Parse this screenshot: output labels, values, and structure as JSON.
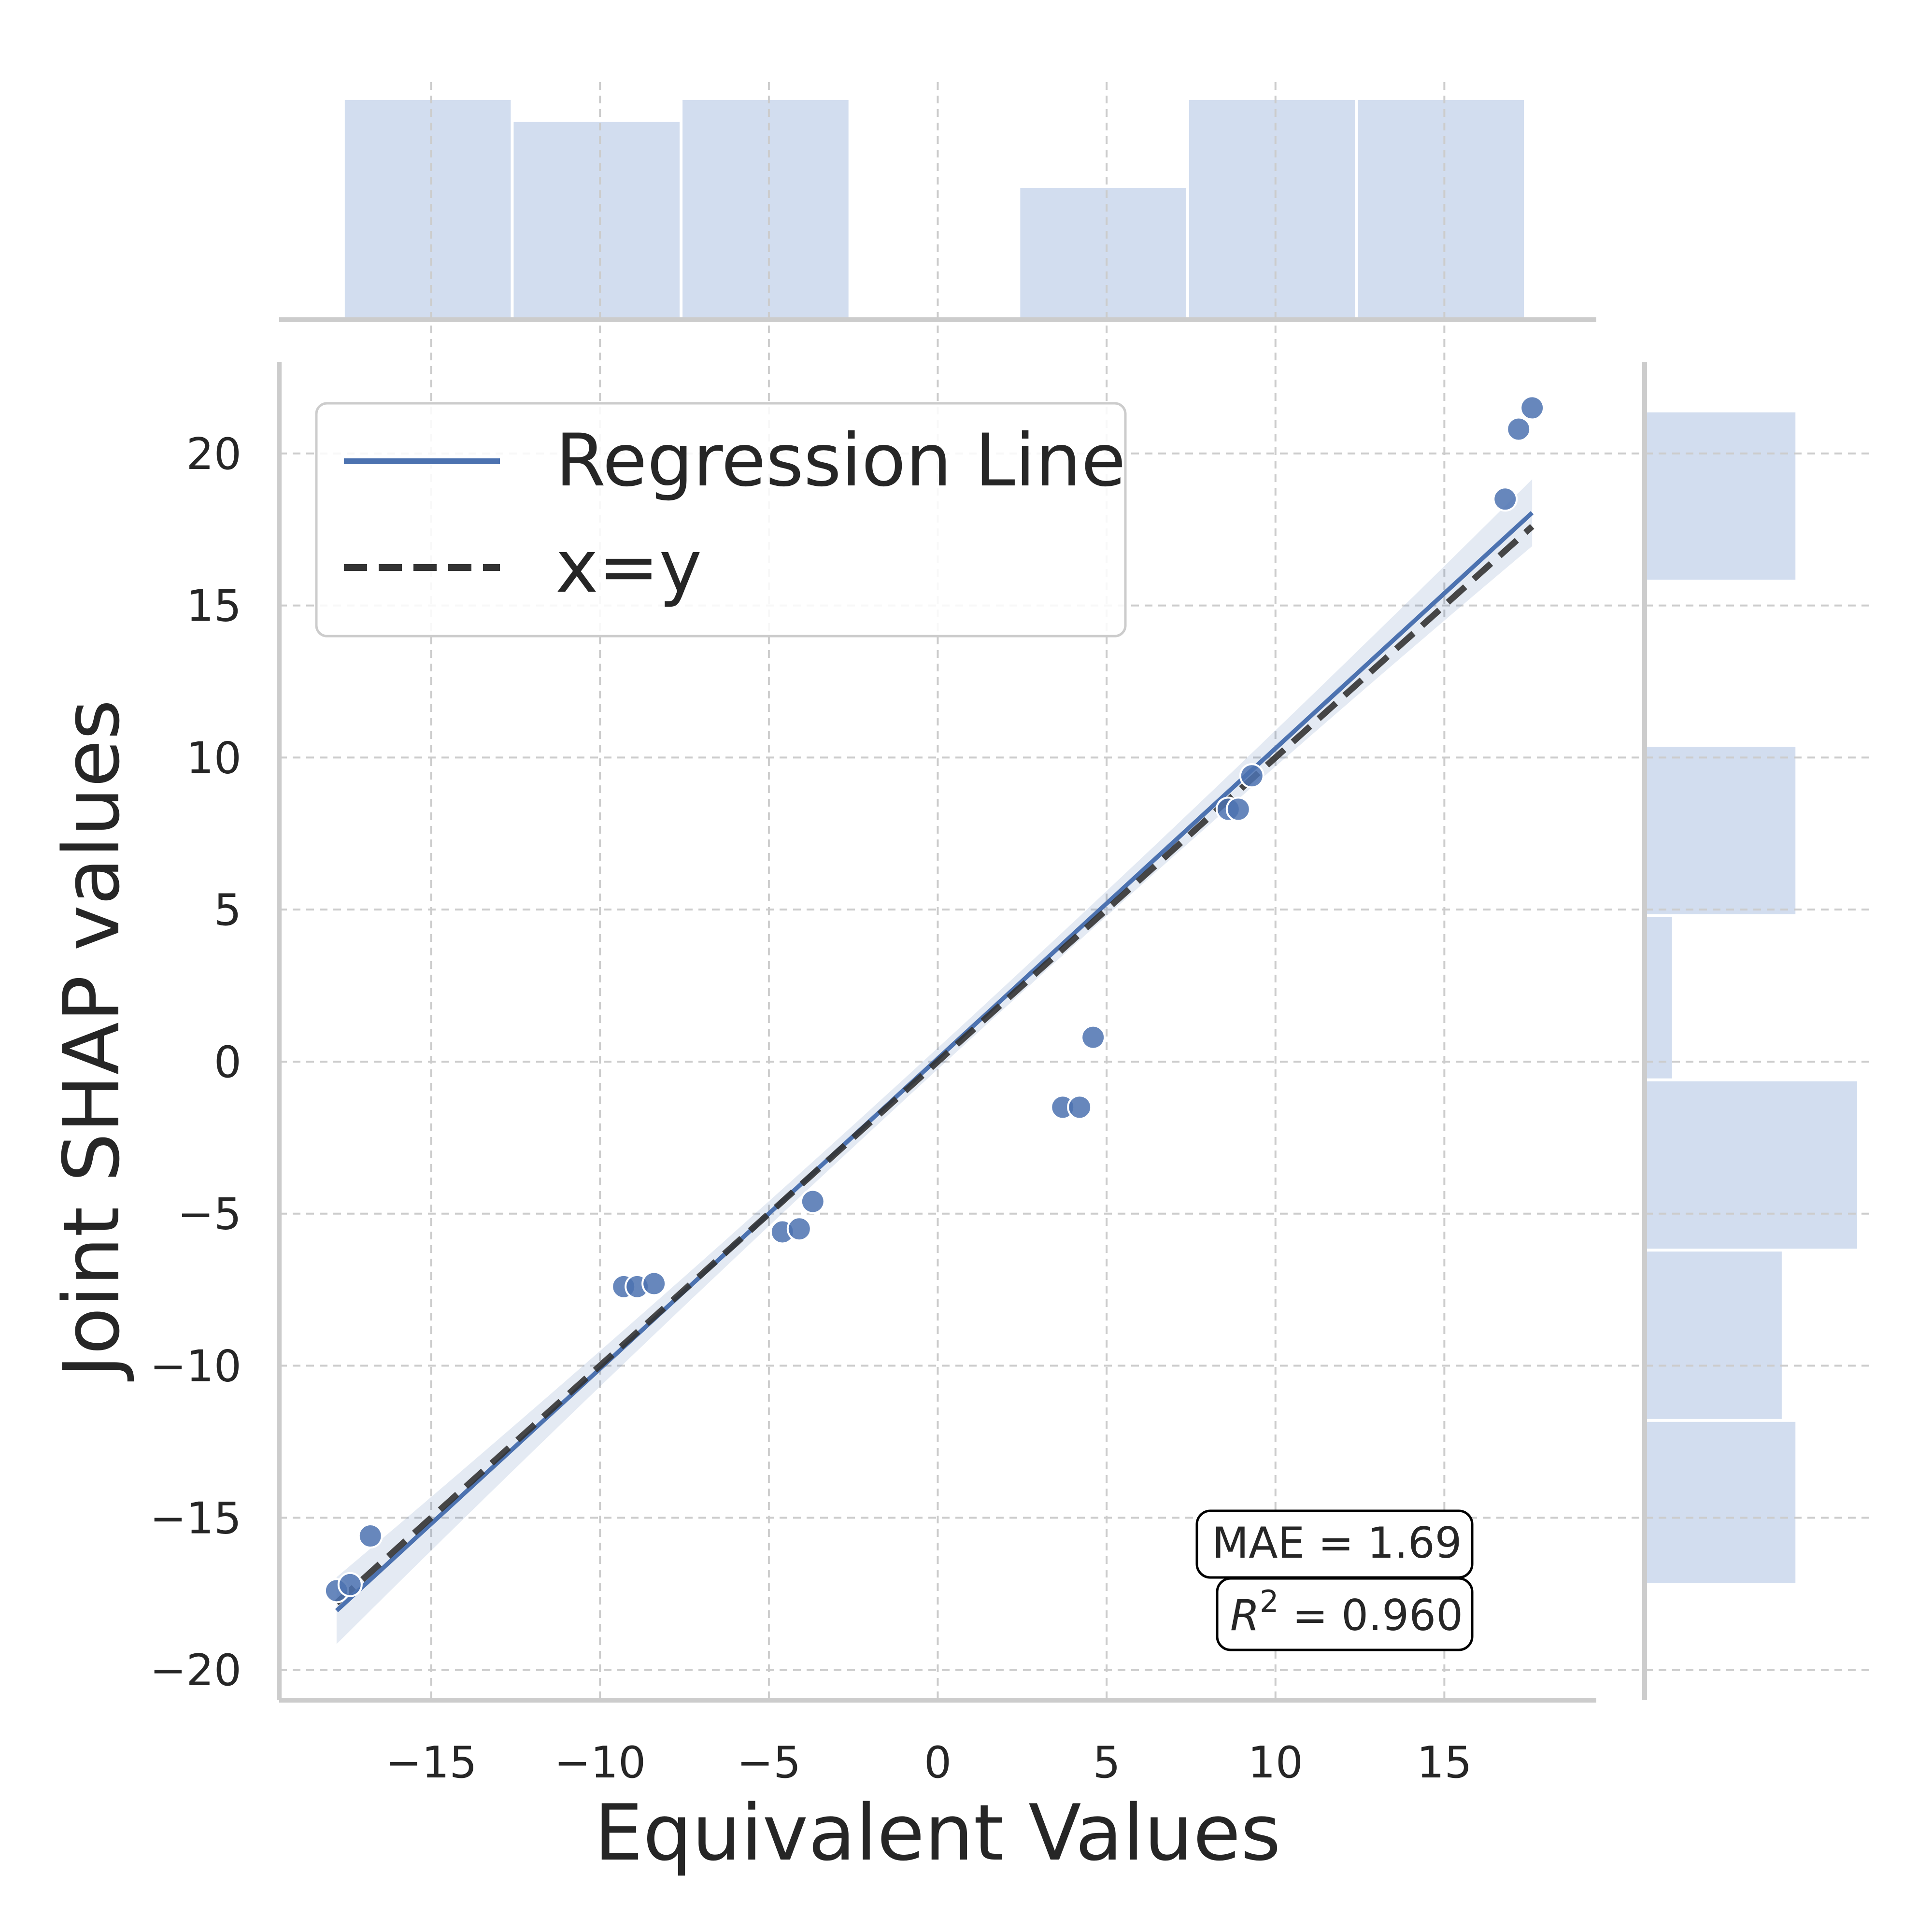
{
  "chart_data": {
    "type": "scatter",
    "xlabel": "Equivalent Values",
    "ylabel": "Joint SHAP values",
    "xlim": [
      -19.5,
      19.5
    ],
    "ylim": [
      -21,
      23
    ],
    "x_ticks": [
      -15,
      -10,
      -5,
      0,
      5,
      10,
      15
    ],
    "y_ticks": [
      -20,
      -15,
      -10,
      -5,
      0,
      5,
      10,
      15,
      20
    ],
    "x_tick_labels": [
      "−15",
      "−10",
      "−5",
      "0",
      "5",
      "10",
      "15"
    ],
    "y_tick_labels": [
      "−20",
      "−15",
      "−10",
      "−5",
      "0",
      "5",
      "10",
      "15",
      "20"
    ],
    "grid": true,
    "legend_position": "top-left",
    "legend": {
      "regression": "Regression Line",
      "identity": "x=y"
    },
    "points": [
      {
        "x": -17.8,
        "y": -17.4
      },
      {
        "x": -17.4,
        "y": -17.2
      },
      {
        "x": -16.8,
        "y": -15.6
      },
      {
        "x": -9.3,
        "y": -7.4
      },
      {
        "x": -8.9,
        "y": -7.4
      },
      {
        "x": -8.4,
        "y": -7.3
      },
      {
        "x": -4.6,
        "y": -5.6
      },
      {
        "x": -4.1,
        "y": -5.5
      },
      {
        "x": -3.7,
        "y": -4.6
      },
      {
        "x": 3.7,
        "y": -1.5
      },
      {
        "x": 4.2,
        "y": -1.5
      },
      {
        "x": 4.6,
        "y": 0.8
      },
      {
        "x": 8.6,
        "y": 8.3
      },
      {
        "x": 8.9,
        "y": 8.3
      },
      {
        "x": 9.3,
        "y": 9.4
      },
      {
        "x": 16.8,
        "y": 18.5
      },
      {
        "x": 17.2,
        "y": 20.8
      },
      {
        "x": 17.6,
        "y": 21.5
      }
    ],
    "regression": {
      "slope": 1.02,
      "intercept": 0.1,
      "x_range": [
        -17.8,
        17.6
      ],
      "ci_halfwidth_ends": 1.1,
      "ci_halfwidth_center": 0.35
    },
    "identity_line": {
      "x_range": [
        -17.8,
        17.6
      ]
    },
    "top_histogram": {
      "bin_edges": [
        -17.6,
        -12.6,
        -7.6,
        -2.6,
        2.4,
        7.4,
        12.4,
        17.4
      ],
      "counts": [
        3,
        2.7,
        3,
        0,
        1.8,
        3,
        3
      ]
    },
    "right_histogram": {
      "bin_edges": [
        -17.2,
        -11.8,
        -6.2,
        -0.6,
        4.8,
        10.4,
        15.8,
        21.4
      ],
      "counts": [
        2.2,
        2.0,
        3.1,
        0.4,
        2.2,
        0,
        2.2
      ]
    },
    "stats": {
      "mae": "MAE = 1.69",
      "r2_symbol": "R",
      "r2_exp": "2",
      "r2_value": " = 0.960"
    },
    "colors": {
      "points": "#4c72b0",
      "regression": "#4c72b0",
      "ci_band": "#4c72b0",
      "identity": "#333333",
      "histogram": "#c7d5eb"
    }
  }
}
